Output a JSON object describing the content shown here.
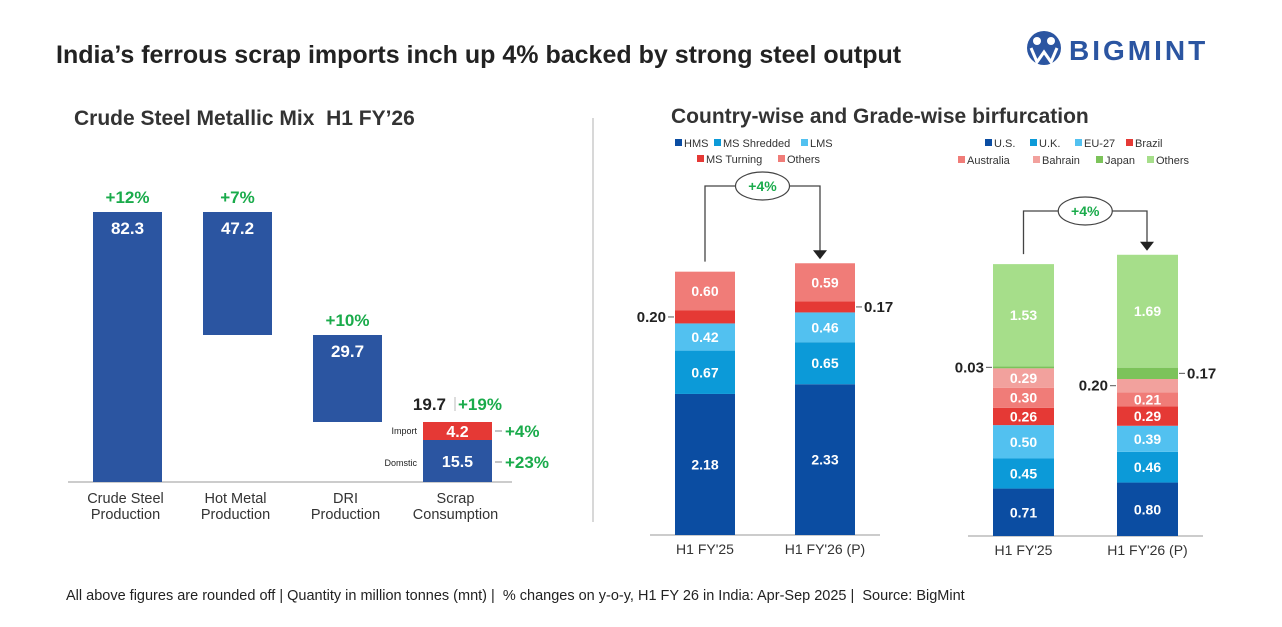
{
  "header": {
    "title": "India’s ferrous scrap imports inch up 4% backed by strong steel output",
    "logo_text": "BIGMINT"
  },
  "colors": {
    "left_bar": "#2b55a1",
    "import": "#e53935",
    "green": "#1aab4b",
    "text": "#222222"
  },
  "footer": {
    "note": "All above figures are rounded off | Quantity in million tonnes (mnt) |  % changes on y-o-y, H1 FY 26 in India: Apr-Sep 2025 |  Source: BigMint"
  },
  "chart_data": [
    {
      "type": "bar",
      "title": "Crude Steel Metallic Mix  H1 FY’26",
      "categories": [
        "Crude Steel Production",
        "Hot Metal Production",
        "DRI Production",
        "Scrap Consumption"
      ],
      "category_lines": [
        [
          "Crude Steel",
          "Production"
        ],
        [
          "Hot Metal",
          "Production"
        ],
        [
          "DRI",
          "Production"
        ],
        [
          "Scrap",
          "Consumption"
        ]
      ],
      "values": [
        82.3,
        47.2,
        29.7,
        19.7
      ],
      "changes": [
        "+12%",
        "+7%",
        "+10%",
        "+19%"
      ],
      "scrap_breakdown": [
        {
          "name": "Import",
          "value": 4.2,
          "change": "+4%"
        },
        {
          "name": "Domstic",
          "value": 15.5,
          "change": "+23%"
        }
      ]
    },
    {
      "type": "bar",
      "stacked": true,
      "title": "Country-wise and Grade-wise birfurcation",
      "subtitle": "Grade-wise",
      "categories": [
        "H1 FY'25",
        "H1 FY'26 (P)"
      ],
      "change": "+4%",
      "series": [
        {
          "name": "HMS",
          "color": "#0b4da2",
          "values": [
            2.18,
            2.33
          ]
        },
        {
          "name": "MS Shredded",
          "color": "#0c9ad8",
          "values": [
            0.67,
            0.65
          ]
        },
        {
          "name": "LMS",
          "color": "#52c1f0",
          "values": [
            0.42,
            0.46
          ]
        },
        {
          "name": "MS Turning",
          "color": "#e53935",
          "values": [
            0.2,
            0.17
          ]
        },
        {
          "name": "Others",
          "color": "#f07c78",
          "values": [
            0.6,
            0.59
          ]
        }
      ]
    },
    {
      "type": "bar",
      "stacked": true,
      "subtitle": "Country-wise",
      "categories": [
        "H1 FY'25",
        "H1 FY'26 (P)"
      ],
      "change": "+4%",
      "series": [
        {
          "name": "U.S.",
          "color": "#0b4da2",
          "values": [
            0.71,
            0.8
          ]
        },
        {
          "name": "U.K.",
          "color": "#0c9ad8",
          "values": [
            0.45,
            0.46
          ]
        },
        {
          "name": "EU-27",
          "color": "#52c1f0",
          "values": [
            0.5,
            0.39
          ]
        },
        {
          "name": "Brazil",
          "color": "#e53935",
          "values": [
            0.26,
            0.29
          ]
        },
        {
          "name": "Australia",
          "color": "#f07c78",
          "values": [
            0.3,
            0.21
          ]
        },
        {
          "name": "Bahrain",
          "color": "#f2a19d",
          "values": [
            0.29,
            0.2
          ]
        },
        {
          "name": "Japan",
          "color": "#7cc35a",
          "values": [
            0.03,
            0.17
          ]
        },
        {
          "name": "Others",
          "color": "#a6de8a",
          "values": [
            1.53,
            1.69
          ]
        }
      ]
    }
  ]
}
